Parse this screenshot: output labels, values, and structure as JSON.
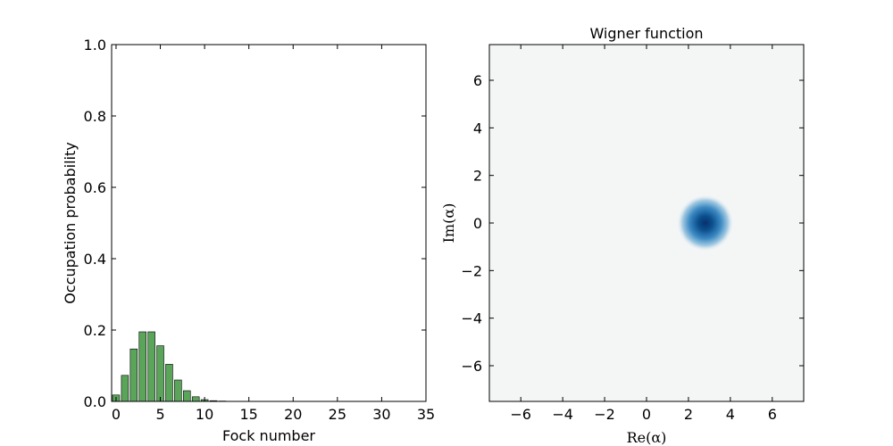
{
  "chart_data": [
    {
      "type": "bar",
      "title": "",
      "xlabel": "Fock number",
      "ylabel": "Occupation probability",
      "xlim": [
        -0.5,
        35
      ],
      "ylim": [
        0,
        1.0
      ],
      "xticks": [
        "0",
        "5",
        "10",
        "15",
        "20",
        "25",
        "30",
        "35"
      ],
      "yticks": [
        "0.0",
        "0.2",
        "0.4",
        "0.6",
        "0.8",
        "1.0"
      ],
      "bar_color": "#5aa55a",
      "categories": [
        0,
        1,
        2,
        3,
        4,
        5,
        6,
        7,
        8,
        9,
        10,
        11,
        12,
        13,
        14,
        15,
        16,
        17,
        18,
        19,
        20,
        21,
        22,
        23,
        24,
        25,
        26,
        27,
        28,
        29,
        30,
        31,
        32,
        33,
        34
      ],
      "values": [
        0.018,
        0.073,
        0.147,
        0.195,
        0.195,
        0.156,
        0.104,
        0.06,
        0.03,
        0.013,
        0.005,
        0.002,
        0.001,
        0,
        0,
        0,
        0,
        0,
        0,
        0,
        0,
        0,
        0,
        0,
        0,
        0,
        0,
        0,
        0,
        0,
        0,
        0,
        0,
        0,
        0
      ]
    },
    {
      "type": "heatmap",
      "title": "Wigner function",
      "xlabel": "Re(α)",
      "ylabel": "Im(α)",
      "xlim": [
        -7.5,
        7.5
      ],
      "ylim": [
        -7.5,
        7.5
      ],
      "xticks": [
        "−6",
        "−4",
        "−2",
        "0",
        "2",
        "4",
        "6"
      ],
      "yticks": [
        "−6",
        "−4",
        "−2",
        "0",
        "2",
        "4",
        "6"
      ],
      "colormap": "RdBu",
      "peak_color": "#08306b",
      "background_color": "#f4f6f6",
      "peak_center": [
        2.8,
        0.0
      ]
    }
  ]
}
